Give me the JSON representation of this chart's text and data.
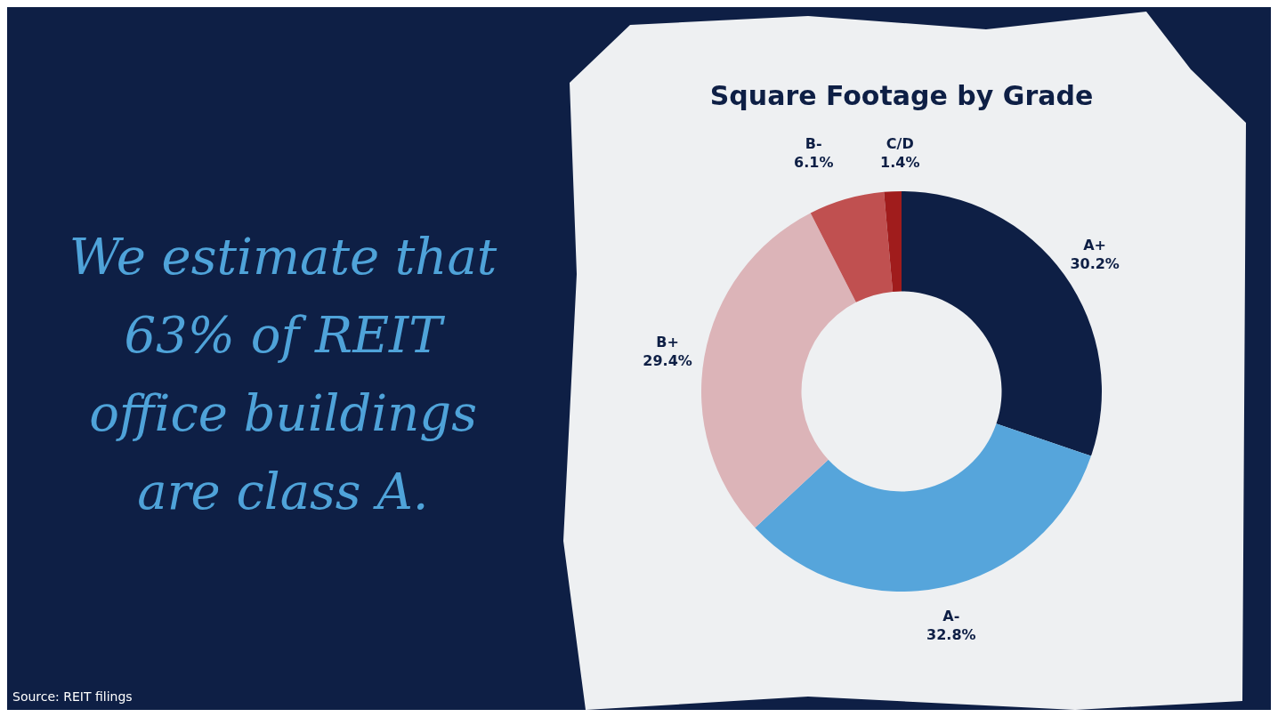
{
  "chart_data": {
    "type": "donut",
    "title": "Square Footage by Grade",
    "categories": [
      "A+",
      "A-",
      "B+",
      "B-",
      "C/D"
    ],
    "values": [
      30.2,
      32.8,
      29.4,
      6.1,
      1.4
    ],
    "value_labels": [
      "30.2%",
      "32.8%",
      "29.4%",
      "6.1%",
      "1.4%"
    ],
    "colors": [
      "#0e1f45",
      "#56a5db",
      "#dcb4b8",
      "#c05050",
      "#a01c1c"
    ],
    "legend": false,
    "annotations": [
      "We estimate that 63% of REIT office buildings are class A.",
      "Source: REIT filings"
    ]
  }
}
